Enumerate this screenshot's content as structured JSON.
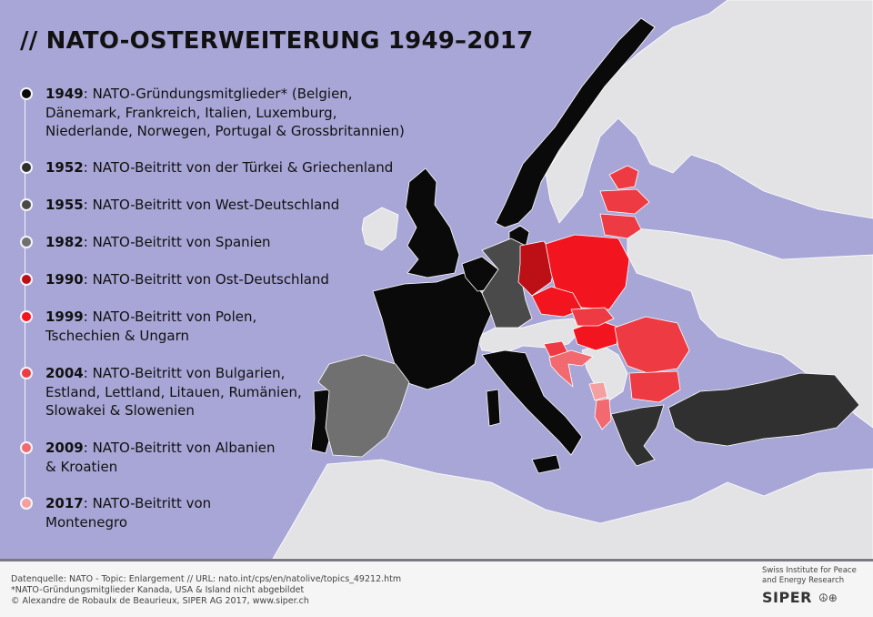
{
  "title": "// NATO-OSTERWEITERUNG 1949–2017",
  "legend": [
    {
      "year": "1949",
      "text": ": NATO-Gründungsmitglieder* (Belgien, Dänemark, Frankreich, Italien, Luxemburg, Niederlande, Norwegen, Portugal & Grossbritannien)",
      "color": "#0a0a0a"
    },
    {
      "year": "1952",
      "text": ": NATO-Beitritt von der Türkei & Griechenland",
      "color": "#303030"
    },
    {
      "year": "1955",
      "text": ": NATO-Beitritt von West-Deutschland",
      "color": "#4a4a4a"
    },
    {
      "year": "1982",
      "text": ": NATO-Beitritt von Spanien",
      "color": "#707070"
    },
    {
      "year": "1990",
      "text": ": NATO-Beitritt von Ost-Deutschland",
      "color": "#bd0f16"
    },
    {
      "year": "1999",
      "text": ": NATO-Beitritt von Polen, Tschechien & Ungarn",
      "color": "#f2141e"
    },
    {
      "year": "2004",
      "text": ": NATO-Beitritt von Bulgarien, Estland, Lettland, Litauen, Rumänien, Slowakei & Slowenien",
      "color": "#ee3b43"
    },
    {
      "year": "2009",
      "text": ": NATO-Beitritt von Albanien & Kroatien",
      "color": "#f26a70"
    },
    {
      "year": "2017",
      "text": ": NATO-Beitritt von Montenegro",
      "color": "#f4a0a2"
    }
  ],
  "footer": {
    "source": "Datenquelle: NATO - Topic: Enlargement // URL: nato.int/cps/en/natolive/topics_49212.htm",
    "note": "*NATO-Gründungsmitglieder Kanada, USA & Island nicht abgebildet",
    "copyright": "© Alexandre de Robaulx de Beaurieux, SIPER AG 2017, www.siper.ch"
  },
  "org": {
    "line1": "Swiss Institute for Peace",
    "line2": "and Energy Research",
    "logo": "SIPER",
    "symbols": "☮⊕"
  },
  "colors": {
    "sea": "#a8a6d6",
    "non_member": "#e3e3e6",
    "c1949": "#0a0a0a",
    "c1952": "#303030",
    "c1955": "#4a4a4a",
    "c1982": "#707070",
    "c1990": "#bd0f16",
    "c1999": "#f2141e",
    "c2004": "#ee3b43",
    "c2009": "#f26a70",
    "c2017": "#f4a0a2"
  }
}
